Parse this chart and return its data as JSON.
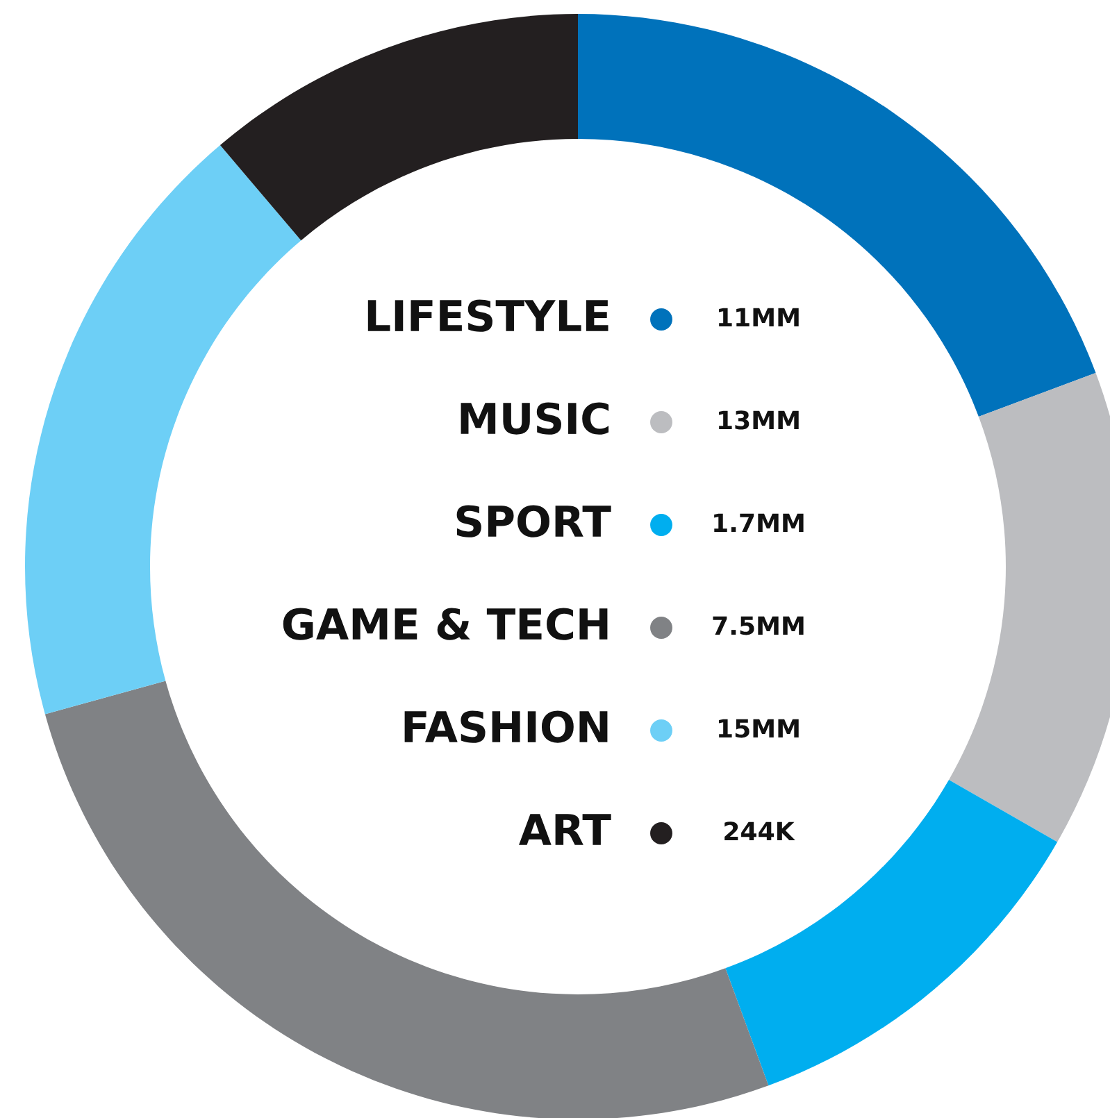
{
  "chart_data": {
    "type": "donut",
    "categories": [
      "LIFESTYLE",
      "MUSIC",
      "SPORT",
      "GAME & TECH",
      "FASHION",
      "ART"
    ],
    "values": [
      19.3,
      14.0,
      11.1,
      26.3,
      18.1,
      11.2
    ],
    "annotations": [
      "11MM",
      "13MM",
      "1.7MM",
      "7.5MM",
      "15MM",
      "244K"
    ],
    "colors": [
      "#0072bb",
      "#bcbdc0",
      "#00aeef",
      "#808285",
      "#6dcff6",
      "#231f20"
    ],
    "legend": "center"
  }
}
